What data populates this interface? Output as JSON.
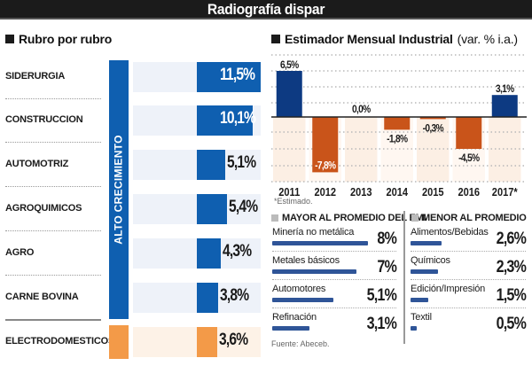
{
  "header": {
    "title": "Radiografía dispar"
  },
  "left_panel": {
    "title": "Rubro por rubro",
    "band_label": "ALTO CRECIMIENTO",
    "colors": {
      "high": "#0f5fb0",
      "low": "#f39a48"
    },
    "rows": [
      {
        "label": "SIDERURGIA",
        "value": 11.5,
        "display": "11,5%",
        "group": "high"
      },
      {
        "label": "CONSTRUCCION",
        "value": 10.1,
        "display": "10,1%",
        "group": "high"
      },
      {
        "label": "AUTOMOTRIZ",
        "value": 5.1,
        "display": "5,1%",
        "group": "high"
      },
      {
        "label": "AGROQUIMICOS",
        "value": 5.4,
        "display": "5,4%",
        "group": "high"
      },
      {
        "label": "AGRO",
        "value": 4.3,
        "display": "4,3%",
        "group": "high"
      },
      {
        "label": "CARNE BOVINA",
        "value": 3.8,
        "display": "3,8%",
        "group": "high"
      },
      {
        "label": "ELECTRODOMESTICOS",
        "value": 3.6,
        "display": "3,6%",
        "group": "low"
      }
    ]
  },
  "chart_data": {
    "type": "bar",
    "title": "Estimador Mensual Industrial",
    "subtitle": "(var. % i.a.)",
    "categories": [
      "2011",
      "2012",
      "2013",
      "2014",
      "2015",
      "2016",
      "2017*"
    ],
    "values": [
      6.5,
      -7.8,
      0.0,
      -1.8,
      -0.3,
      -4.5,
      3.1
    ],
    "labels": [
      "6,5%",
      "-7,8%",
      "0,0%",
      "-1,8%",
      "-0,3%",
      "-4,5%",
      "3,1%"
    ],
    "ylim": [
      -8,
      8
    ],
    "grid": true,
    "xlabel": "",
    "ylabel": "",
    "colors": {
      "positive": "#0d3a82",
      "negative": "#c9541a"
    },
    "footnote": "*Estimado."
  },
  "lists": {
    "above": {
      "title": "MAYOR AL PROMEDIO DEL EMI",
      "items": [
        {
          "label": "Minería no metálica",
          "value": 8,
          "display": "8%"
        },
        {
          "label": "Metales básicos",
          "value": 7,
          "display": "7%"
        },
        {
          "label": "Automotores",
          "value": 5.1,
          "display": "5,1%"
        },
        {
          "label": "Refinación",
          "value": 3.1,
          "display": "3,1%"
        }
      ]
    },
    "below": {
      "title": "MENOR AL PROMEDIO",
      "items": [
        {
          "label": "Alimentos/Bebidas",
          "value": 2.6,
          "display": "2,6%"
        },
        {
          "label": "Químicos",
          "value": 2.3,
          "display": "2,3%"
        },
        {
          "label": "Edición/Impresión",
          "value": 1.5,
          "display": "1,5%"
        },
        {
          "label": "Textil",
          "value": 0.5,
          "display": "0,5%"
        }
      ]
    },
    "source": "Fuente: Abeceb."
  }
}
